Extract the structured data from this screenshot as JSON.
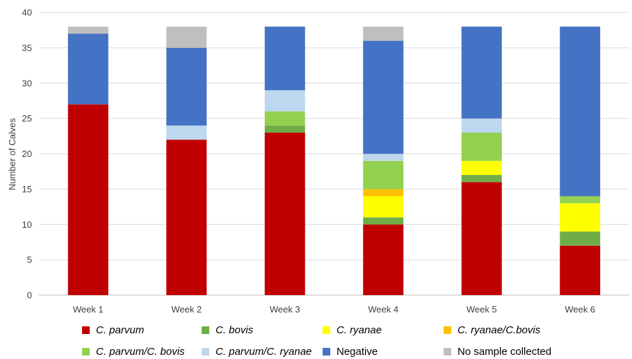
{
  "chart_data": {
    "type": "stacked-bar",
    "title": "",
    "xlabel": "",
    "ylabel": "Number of Calves",
    "ylim": [
      0,
      40
    ],
    "yticks": [
      0,
      5,
      10,
      15,
      20,
      25,
      30,
      35,
      40
    ],
    "grid": true,
    "legend_position": "bottom",
    "categories": [
      "Week 1",
      "Week 2",
      "Week 3",
      "Week 4",
      "Week 5",
      "Week 6"
    ],
    "series": [
      {
        "name": "C. parvum",
        "italic": true,
        "color": "#C00000",
        "values": [
          27,
          22,
          23,
          10,
          16,
          7
        ]
      },
      {
        "name": "C. bovis",
        "italic": true,
        "color": "#70AD47",
        "values": [
          0,
          0,
          1,
          1,
          1,
          2
        ]
      },
      {
        "name": "C. ryanae",
        "italic": true,
        "color": "#FFFF00",
        "values": [
          0,
          0,
          0,
          3,
          2,
          4
        ]
      },
      {
        "name": "C. ryanae/C.bovis",
        "italic": true,
        "color": "#FFC000",
        "values": [
          0,
          0,
          0,
          1,
          0,
          0
        ]
      },
      {
        "name": "C. parvum/C. bovis",
        "italic": true,
        "color": "#92D050",
        "values": [
          0,
          0,
          2,
          4,
          4,
          1
        ]
      },
      {
        "name": "C. parvum/C. ryanae",
        "italic": true,
        "color": "#BDD7EE",
        "values": [
          0,
          2,
          3,
          1,
          2,
          0
        ]
      },
      {
        "name": "Negative",
        "italic": false,
        "color": "#4472C4",
        "values": [
          10,
          11,
          9,
          16,
          13,
          24
        ]
      },
      {
        "name": "No sample collected",
        "italic": false,
        "color": "#BFBFBF",
        "values": [
          1,
          3,
          0,
          2,
          0,
          0
        ]
      }
    ]
  }
}
